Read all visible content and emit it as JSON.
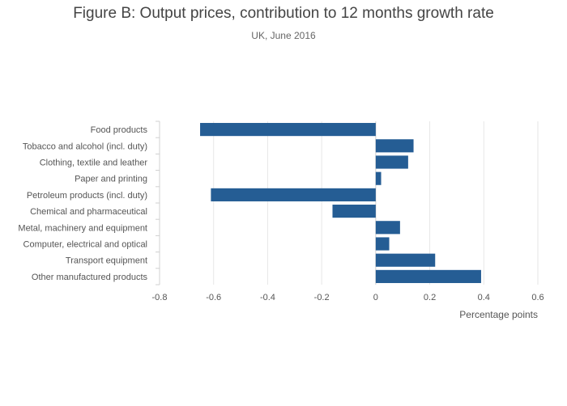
{
  "chart_data": {
    "type": "bar",
    "orientation": "horizontal",
    "title": "Figure B: Output prices, contribution to 12 months growth rate",
    "subtitle": "UK, June 2016",
    "xlabel": "Percentage points",
    "ylabel": "",
    "xlim": [
      -0.8,
      0.6
    ],
    "xticks": [
      "-0.8",
      "-0.6",
      "-0.4",
      "-0.2",
      "0",
      "0.2",
      "0.4",
      "0.6"
    ],
    "xtick_values": [
      -0.8,
      -0.6,
      -0.4,
      -0.2,
      0,
      0.2,
      0.4,
      0.6
    ],
    "grid": true,
    "bar_color": "#255d94",
    "categories": [
      "Food products",
      "Tobacco and alcohol (incl. duty)",
      "Clothing, textile and leather",
      "Paper and printing",
      "Petroleum products (incl. duty)",
      "Chemical and pharmaceutical",
      "Metal, machinery and equipment",
      "Computer, electrical and optical",
      "Transport equipment",
      "Other manufactured products"
    ],
    "values": [
      -0.65,
      0.14,
      0.12,
      0.02,
      -0.61,
      -0.16,
      0.09,
      0.05,
      0.22,
      0.39
    ]
  }
}
